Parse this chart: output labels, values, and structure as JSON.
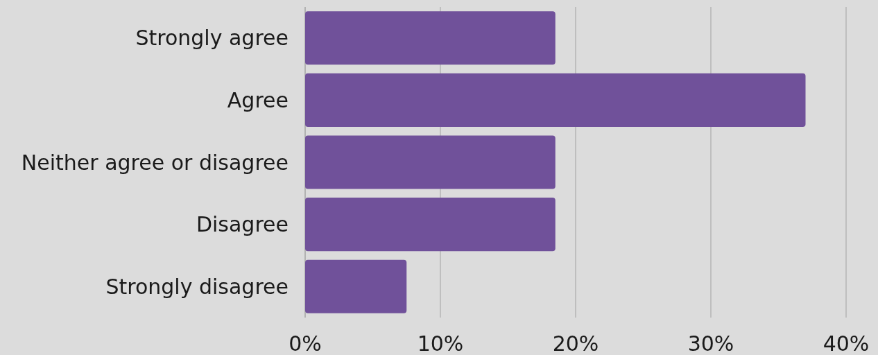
{
  "chart_data": {
    "type": "bar",
    "orientation": "horizontal",
    "categories": [
      "Strongly agree",
      "Agree",
      "Neither agree or disagree",
      "Disagree",
      "Strongly disagree"
    ],
    "values": [
      18.5,
      37,
      18.5,
      18.5,
      7.5
    ],
    "color": "#70519a",
    "xlim": [
      0,
      40
    ],
    "xticks": [
      {
        "value": 0,
        "label": "0%"
      },
      {
        "value": 10,
        "label": "10%"
      },
      {
        "value": 20,
        "label": "20%"
      },
      {
        "value": 30,
        "label": "30%"
      },
      {
        "value": 40,
        "label": "40%"
      }
    ],
    "grid": "x"
  }
}
